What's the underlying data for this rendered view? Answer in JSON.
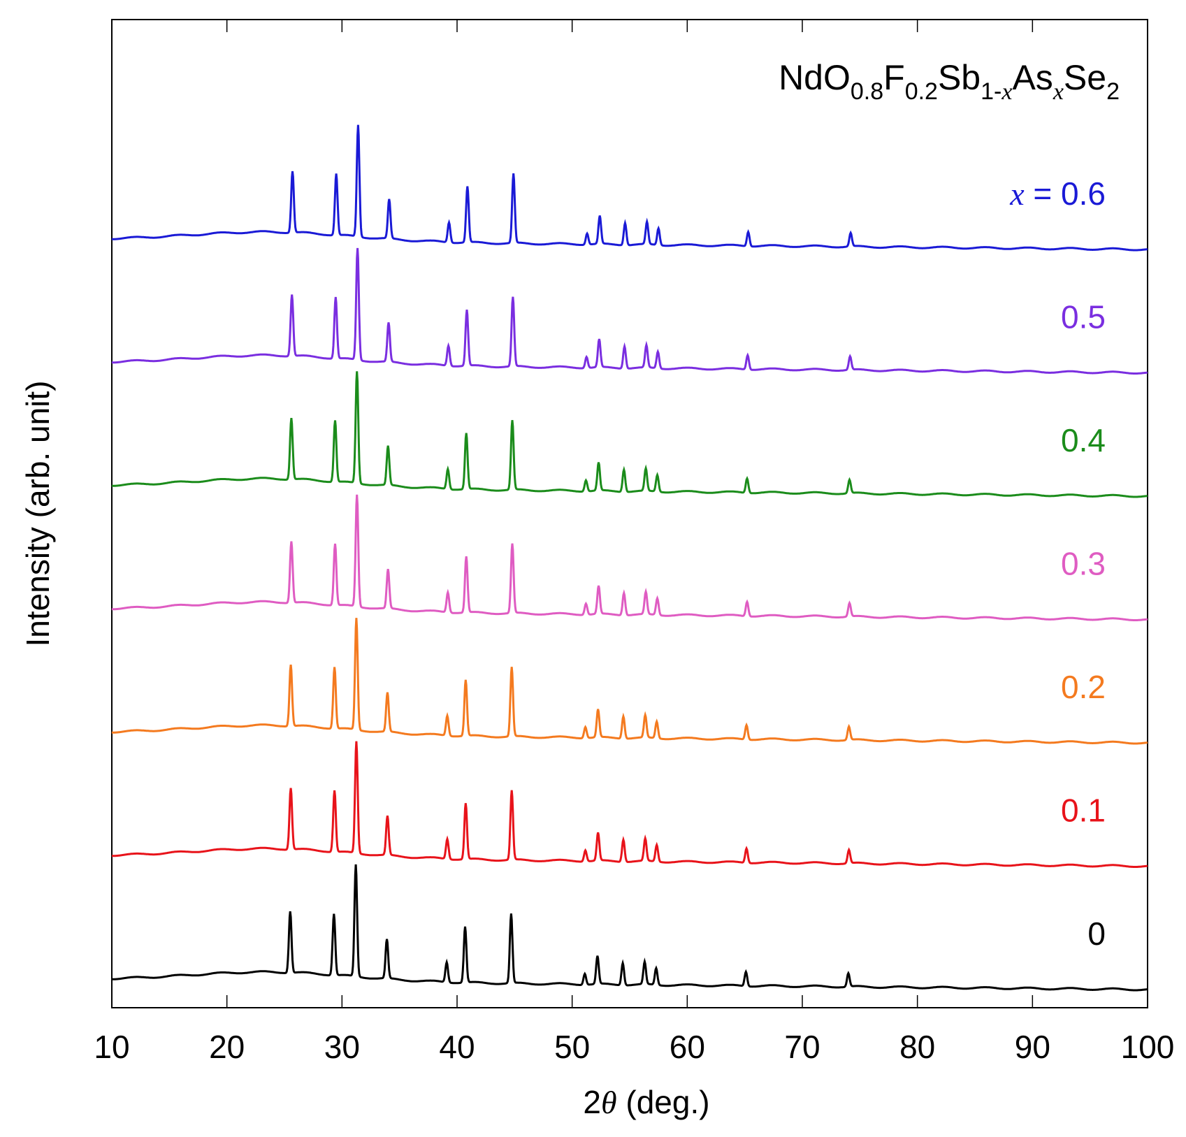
{
  "chart_data": {
    "type": "line",
    "title": "",
    "xlabel": {
      "prefix": "2",
      "theta": "θ",
      "suffix": " (deg.)"
    },
    "ylabel": "Intensity (arb. unit)",
    "xlim": [
      10,
      100
    ],
    "x_ticks": [
      10,
      20,
      30,
      40,
      50,
      60,
      70,
      80,
      90,
      100
    ],
    "y_ticks_shown": false,
    "formula": {
      "parts": [
        {
          "text": "NdO",
          "sub": false,
          "italic": false
        },
        {
          "text": "0.8",
          "sub": true,
          "italic": false
        },
        {
          "text": "F",
          "sub": false,
          "italic": false
        },
        {
          "text": "0.2",
          "sub": true,
          "italic": false
        },
        {
          "text": "Sb",
          "sub": false,
          "italic": false
        },
        {
          "text": "1-",
          "sub": true,
          "italic": false
        },
        {
          "text": "x",
          "sub": true,
          "italic": true
        },
        {
          "text": "As",
          "sub": false,
          "italic": false
        },
        {
          "text": "x",
          "sub": true,
          "italic": true
        },
        {
          "text": "Se",
          "sub": false,
          "italic": false
        },
        {
          "text": "2",
          "sub": true,
          "italic": false
        }
      ]
    },
    "top_label_prefix": {
      "var": "x",
      "eq": " = "
    },
    "peaks_2theta": [
      25.6,
      29.4,
      31.3,
      34.0,
      39.2,
      40.8,
      44.8,
      51.2,
      52.3,
      54.5,
      56.4,
      57.4,
      65.2,
      74.1
    ],
    "series": [
      {
        "name": "0",
        "label": "0",
        "color": "#000000",
        "offset": 0.0,
        "shift": -0.1
      },
      {
        "name": "0.1",
        "label": "0.1",
        "color": "#e8131a",
        "offset": 1.3,
        "shift": -0.05
      },
      {
        "name": "0.2",
        "label": "0.2",
        "color": "#f47a1f",
        "offset": 2.6,
        "shift": -0.05
      },
      {
        "name": "0.3",
        "label": "0.3",
        "color": "#df5cc2",
        "offset": 3.9,
        "shift": 0.0
      },
      {
        "name": "0.4",
        "label": "0.4",
        "color": "#1b8c1b",
        "offset": 5.2,
        "shift": 0.0
      },
      {
        "name": "0.5",
        "label": "0.5",
        "color": "#7a2ee0",
        "offset": 6.5,
        "shift": 0.05
      },
      {
        "name": "0.6",
        "label": "0.6",
        "color": "#1a1ad6",
        "offset": 7.8,
        "shift": 0.1
      }
    ]
  }
}
